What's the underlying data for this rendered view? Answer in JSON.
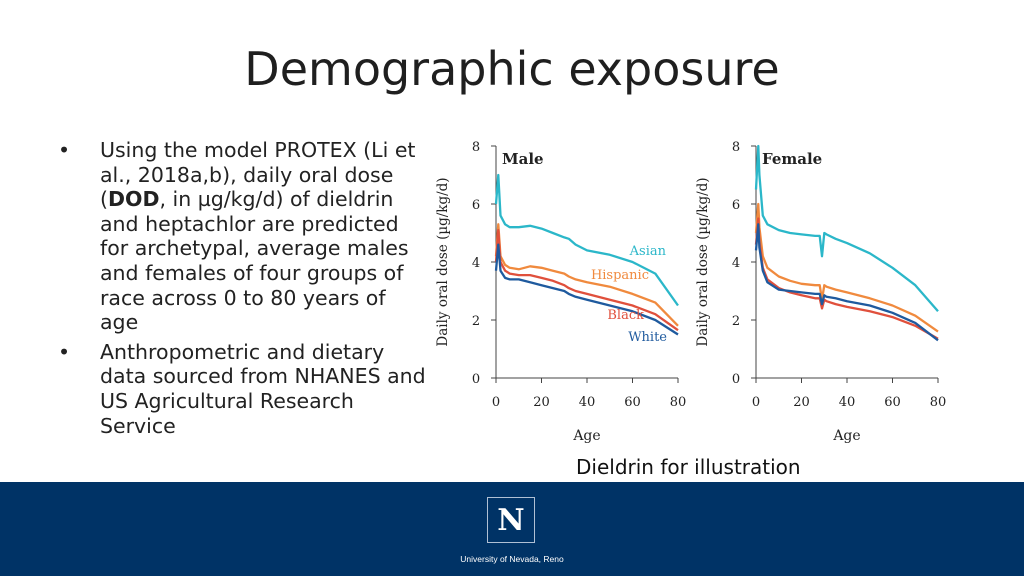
{
  "slide": {
    "title": "Demographic exposure",
    "caption": "Dieldrin for illustration"
  },
  "bullets": [
    {
      "marker": "•",
      "pre": "Using the model PROTEX (Li et al., 2018a,b), daily oral dose (",
      "bold": "DOD",
      "post": ", in µg/kg/d) of dieldrin and heptachlor are predicted for archetypal, average males and females of four groups of race across 0 to 80 years of age"
    },
    {
      "marker": "•",
      "pre": "Anthropometric and dietary data sourced from NHANES and US Agricultural Research Service",
      "bold": "",
      "post": ""
    }
  ],
  "colors": {
    "Asian": "#2bb7c9",
    "Hispanic": "#f08a3e",
    "Black": "#e0503c",
    "White": "#1f5a9e",
    "footer": "#003366"
  },
  "chart_data": [
    {
      "type": "line",
      "title": "Male",
      "xlabel": "Age",
      "ylabel": "Daily oral dose (µg/kg/d)",
      "xlim": [
        0,
        80
      ],
      "ylim": [
        0,
        8
      ],
      "xticks": [
        "0",
        "20",
        "40",
        "60",
        "80"
      ],
      "yticks": [
        "0",
        "2",
        "4",
        "6",
        "8"
      ],
      "series": [
        {
          "name": "Asian",
          "x": [
            0,
            1,
            2,
            4,
            6,
            10,
            15,
            20,
            25,
            30,
            32,
            35,
            40,
            50,
            60,
            70,
            80
          ],
          "y": [
            6.0,
            7.0,
            5.6,
            5.3,
            5.2,
            5.2,
            5.25,
            5.15,
            5.0,
            4.85,
            4.8,
            4.6,
            4.4,
            4.25,
            4.0,
            3.6,
            2.5
          ]
        },
        {
          "name": "Hispanic",
          "x": [
            0,
            1,
            2,
            4,
            6,
            10,
            15,
            20,
            25,
            30,
            32,
            35,
            40,
            50,
            60,
            70,
            80
          ],
          "y": [
            4.2,
            5.3,
            4.2,
            3.9,
            3.8,
            3.75,
            3.85,
            3.8,
            3.7,
            3.6,
            3.5,
            3.4,
            3.3,
            3.15,
            2.9,
            2.6,
            1.8
          ]
        },
        {
          "name": "Black",
          "x": [
            0,
            1,
            2,
            4,
            6,
            10,
            15,
            20,
            25,
            30,
            32,
            35,
            40,
            50,
            60,
            70,
            80
          ],
          "y": [
            4.0,
            5.1,
            4.0,
            3.7,
            3.6,
            3.55,
            3.55,
            3.45,
            3.35,
            3.2,
            3.1,
            3.0,
            2.9,
            2.7,
            2.5,
            2.2,
            1.65
          ]
        },
        {
          "name": "White",
          "x": [
            0,
            1,
            2,
            4,
            6,
            10,
            15,
            20,
            25,
            30,
            32,
            35,
            40,
            50,
            60,
            70,
            80
          ],
          "y": [
            3.7,
            4.6,
            3.7,
            3.45,
            3.4,
            3.4,
            3.3,
            3.2,
            3.1,
            3.0,
            2.9,
            2.8,
            2.7,
            2.5,
            2.3,
            2.0,
            1.5
          ]
        }
      ]
    },
    {
      "type": "line",
      "title": "Female",
      "xlabel": "Age",
      "ylabel": "Daily oral dose (µg/kg/d)",
      "xlim": [
        0,
        80
      ],
      "ylim": [
        0,
        8
      ],
      "xticks": [
        "0",
        "20",
        "40",
        "60",
        "80"
      ],
      "yticks": [
        "0",
        "2",
        "4",
        "6",
        "8"
      ],
      "series": [
        {
          "name": "Asian",
          "x": [
            0,
            1,
            1.5,
            3,
            5,
            10,
            15,
            20,
            26,
            28,
            29,
            30,
            31,
            35,
            40,
            50,
            60,
            70,
            80
          ],
          "y": [
            6.5,
            8.0,
            7.0,
            5.6,
            5.3,
            5.1,
            5.0,
            4.95,
            4.9,
            4.9,
            4.2,
            5.0,
            4.95,
            4.8,
            4.65,
            4.3,
            3.8,
            3.2,
            2.3
          ]
        },
        {
          "name": "Hispanic",
          "x": [
            0,
            1,
            1.5,
            3,
            5,
            10,
            15,
            20,
            26,
            28,
            29,
            30,
            31,
            35,
            40,
            50,
            60,
            70,
            80
          ],
          "y": [
            5.0,
            6.0,
            5.2,
            4.2,
            3.8,
            3.5,
            3.35,
            3.25,
            3.2,
            3.2,
            2.7,
            3.2,
            3.15,
            3.05,
            2.95,
            2.75,
            2.5,
            2.15,
            1.6
          ]
        },
        {
          "name": "Black",
          "x": [
            0,
            1,
            1.5,
            3,
            5,
            10,
            15,
            20,
            26,
            28,
            29,
            30,
            31,
            35,
            40,
            50,
            60,
            70,
            80
          ],
          "y": [
            4.6,
            5.5,
            4.7,
            3.8,
            3.4,
            3.1,
            2.95,
            2.85,
            2.75,
            2.75,
            2.4,
            2.7,
            2.65,
            2.55,
            2.45,
            2.3,
            2.1,
            1.8,
            1.35
          ]
        },
        {
          "name": "White",
          "x": [
            0,
            1,
            1.5,
            3,
            5,
            10,
            15,
            20,
            26,
            28,
            29,
            30,
            31,
            35,
            40,
            50,
            60,
            70,
            80
          ],
          "y": [
            4.4,
            5.3,
            4.5,
            3.7,
            3.3,
            3.05,
            3.0,
            2.95,
            2.9,
            2.9,
            2.55,
            2.85,
            2.8,
            2.75,
            2.65,
            2.5,
            2.25,
            1.9,
            1.3
          ]
        }
      ]
    }
  ],
  "footer": {
    "logo_letter": "N",
    "university": "University of Nevada, Reno"
  }
}
